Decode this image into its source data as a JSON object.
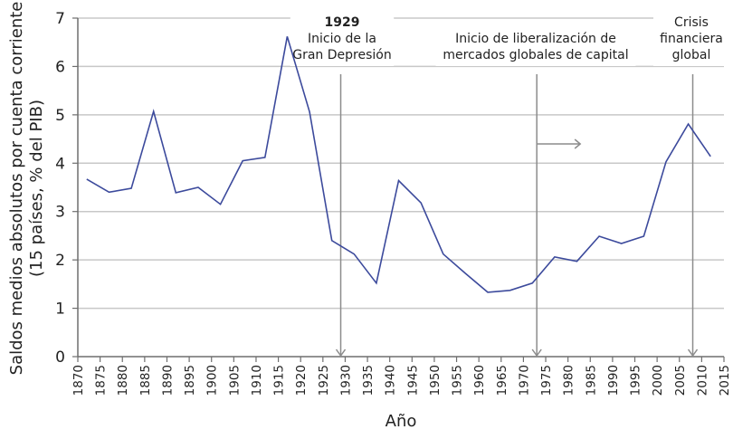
{
  "chart_data": {
    "type": "line",
    "title": "",
    "xlabel": "Año",
    "ylabel": "Saldos medios absolutos por cuenta corriente",
    "ylabel_line2": "(15 países, % del PIB)",
    "xlim": [
      1870,
      2015
    ],
    "ylim": [
      0,
      7
    ],
    "grid": "horizontal",
    "legend": null,
    "x_ticks": [
      1870,
      1875,
      1880,
      1885,
      1890,
      1895,
      1900,
      1905,
      1910,
      1915,
      1920,
      1925,
      1930,
      1935,
      1940,
      1945,
      1950,
      1955,
      1960,
      1965,
      1970,
      1975,
      1980,
      1985,
      1990,
      1995,
      2000,
      2005,
      2010,
      2015
    ],
    "y_ticks": [
      0,
      1,
      2,
      3,
      4,
      5,
      6,
      7
    ],
    "series": [
      {
        "name": "Saldos medios absolutos por cuenta corriente",
        "color": "#3c4a9c",
        "x": [
          1872,
          1877,
          1882,
          1887,
          1892,
          1897,
          1902,
          1907,
          1912,
          1917,
          1922,
          1927,
          1932,
          1937,
          1942,
          1947,
          1952,
          1957,
          1962,
          1967,
          1972,
          1977,
          1982,
          1987,
          1992,
          1997,
          2002,
          2007,
          2012
        ],
        "values": [
          3.67,
          3.4,
          3.48,
          5.07,
          3.39,
          3.5,
          3.15,
          4.05,
          4.12,
          6.62,
          5.06,
          2.4,
          2.12,
          1.52,
          3.64,
          3.18,
          2.12,
          1.72,
          1.33,
          1.37,
          1.52,
          2.06,
          1.97,
          2.49,
          2.34,
          2.49,
          4.03,
          4.81,
          4.14
        ]
      }
    ],
    "annotations": [
      {
        "id": "great-depression",
        "year": 1929,
        "title": "1929",
        "lines": [
          "Inicio de la",
          "Gran Depresión"
        ],
        "arrow": "down"
      },
      {
        "id": "liberalization",
        "year": 1973,
        "title": "",
        "lines": [
          "Inicio de liberalización de",
          "mercados globales de capital"
        ],
        "arrow": "down",
        "direction_arrow": "right"
      },
      {
        "id": "financial-crisis",
        "year": 2008,
        "title": "",
        "lines": [
          "Crisis",
          "financiera",
          "global"
        ],
        "arrow": "down"
      }
    ]
  },
  "colors": {
    "series": "#3c4a9c",
    "grid": "#c8c8c8",
    "axis": "#6e6e6e",
    "marker": "#8c8c8c"
  }
}
